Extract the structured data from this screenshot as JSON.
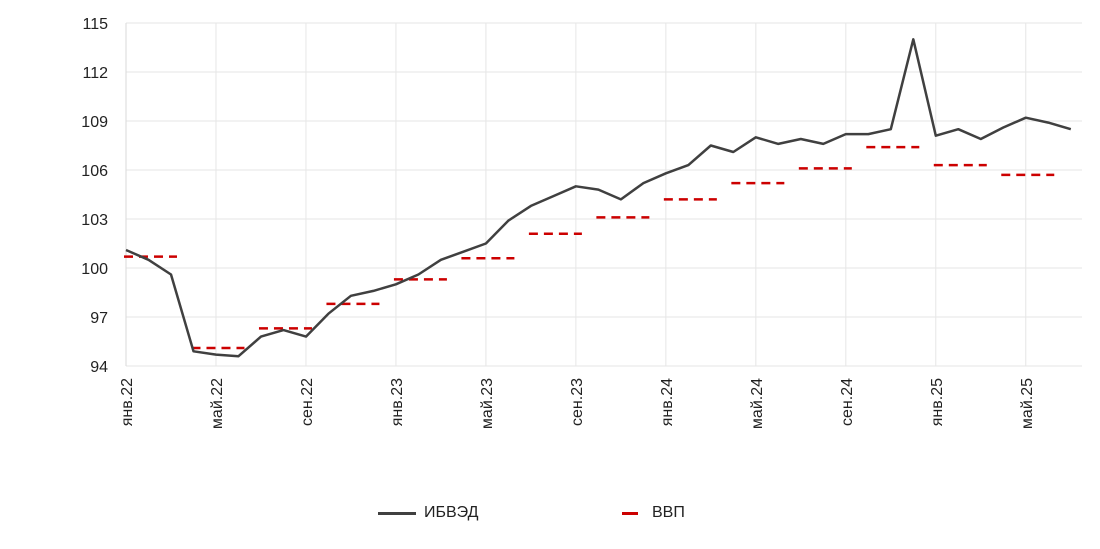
{
  "chart_data": {
    "type": "line",
    "title": "",
    "xlabel": "",
    "ylabel": "",
    "ylim": [
      94,
      115
    ],
    "yticks": [
      94,
      97,
      100,
      103,
      106,
      109,
      112,
      115
    ],
    "grid": true,
    "legend_position": "bottom",
    "x_tick_labels": [
      "янв.22",
      "май.22",
      "сен.22",
      "янв.23",
      "май.23",
      "сен.23",
      "янв.24",
      "май.24",
      "сен.24",
      "янв.25",
      "май.25"
    ],
    "x_tick_months": [
      "2022-01",
      "2022-05",
      "2022-09",
      "2023-01",
      "2023-05",
      "2023-09",
      "2024-01",
      "2024-05",
      "2024-09",
      "2025-01",
      "2025-05"
    ],
    "x_range": [
      "2022-01",
      "2025-07"
    ],
    "series": [
      {
        "name": "ИБВЭД",
        "type": "line",
        "color": "#404040",
        "points": [
          {
            "x": "2022-01",
            "y": 101.1
          },
          {
            "x": "2022-02",
            "y": 100.5
          },
          {
            "x": "2022-03",
            "y": 99.6
          },
          {
            "x": "2022-04",
            "y": 94.9
          },
          {
            "x": "2022-05",
            "y": 94.7
          },
          {
            "x": "2022-06",
            "y": 94.6
          },
          {
            "x": "2022-07",
            "y": 95.8
          },
          {
            "x": "2022-08",
            "y": 96.2
          },
          {
            "x": "2022-09",
            "y": 95.8
          },
          {
            "x": "2022-10",
            "y": 97.2
          },
          {
            "x": "2022-11",
            "y": 98.3
          },
          {
            "x": "2022-12",
            "y": 98.6
          },
          {
            "x": "2023-01",
            "y": 99.0
          },
          {
            "x": "2023-02",
            "y": 99.6
          },
          {
            "x": "2023-03",
            "y": 100.5
          },
          {
            "x": "2023-04",
            "y": 101.0
          },
          {
            "x": "2023-05",
            "y": 101.5
          },
          {
            "x": "2023-06",
            "y": 102.9
          },
          {
            "x": "2023-07",
            "y": 103.8
          },
          {
            "x": "2023-08",
            "y": 104.4
          },
          {
            "x": "2023-09",
            "y": 105.0
          },
          {
            "x": "2023-10",
            "y": 104.8
          },
          {
            "x": "2023-11",
            "y": 104.2
          },
          {
            "x": "2023-12",
            "y": 105.2
          },
          {
            "x": "2024-01",
            "y": 105.8
          },
          {
            "x": "2024-02",
            "y": 106.3
          },
          {
            "x": "2024-03",
            "y": 107.5
          },
          {
            "x": "2024-04",
            "y": 107.1
          },
          {
            "x": "2024-05",
            "y": 108.0
          },
          {
            "x": "2024-06",
            "y": 107.6
          },
          {
            "x": "2024-07",
            "y": 107.9
          },
          {
            "x": "2024-08",
            "y": 107.6
          },
          {
            "x": "2024-09",
            "y": 108.2
          },
          {
            "x": "2024-10",
            "y": 108.2
          },
          {
            "x": "2024-11",
            "y": 108.5
          },
          {
            "x": "2024-12",
            "y": 114.0
          },
          {
            "x": "2025-01",
            "y": 108.1
          },
          {
            "x": "2025-02",
            "y": 108.5
          },
          {
            "x": "2025-03",
            "y": 107.9
          },
          {
            "x": "2025-04",
            "y": 108.6
          },
          {
            "x": "2025-05",
            "y": 109.2
          },
          {
            "x": "2025-06",
            "y": 108.9
          },
          {
            "x": "2025-07",
            "y": 108.5
          }
        ]
      },
      {
        "name": "ВВП",
        "type": "step-dashed",
        "color": "#cc0000",
        "segments": [
          {
            "x_start": "2022-01",
            "x_end": "2022-03",
            "y": 100.7
          },
          {
            "x_start": "2022-04",
            "x_end": "2022-06",
            "y": 95.1
          },
          {
            "x_start": "2022-07",
            "x_end": "2022-09",
            "y": 96.3
          },
          {
            "x_start": "2022-10",
            "x_end": "2022-12",
            "y": 97.8
          },
          {
            "x_start": "2023-01",
            "x_end": "2023-03",
            "y": 99.3
          },
          {
            "x_start": "2023-04",
            "x_end": "2023-06",
            "y": 100.6
          },
          {
            "x_start": "2023-07",
            "x_end": "2023-09",
            "y": 102.1
          },
          {
            "x_start": "2023-10",
            "x_end": "2023-12",
            "y": 103.1
          },
          {
            "x_start": "2024-01",
            "x_end": "2024-03",
            "y": 104.2
          },
          {
            "x_start": "2024-04",
            "x_end": "2024-06",
            "y": 105.2
          },
          {
            "x_start": "2024-07",
            "x_end": "2024-09",
            "y": 106.1
          },
          {
            "x_start": "2024-10",
            "x_end": "2024-12",
            "y": 107.4
          },
          {
            "x_start": "2025-01",
            "x_end": "2025-03",
            "y": 106.3
          },
          {
            "x_start": "2025-04",
            "x_end": "2025-06",
            "y": 105.7
          }
        ]
      }
    ]
  },
  "legend": {
    "items": [
      {
        "label": "ИБВЭД"
      },
      {
        "label": "ВВП"
      }
    ]
  }
}
